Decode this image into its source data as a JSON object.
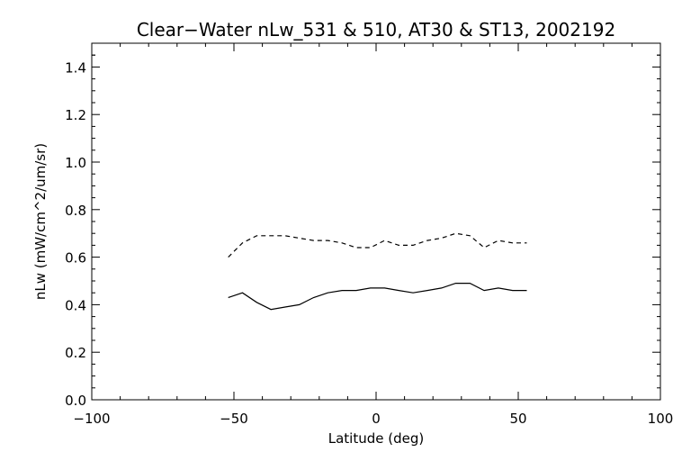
{
  "chart_data": {
    "type": "line",
    "title": "Clear−Water nLw_531 & 510, AT30 & ST13, 2002192",
    "xlabel": "Latitude (deg)",
    "ylabel": "nLw (mW/cm^2/um/sr)",
    "xlim": [
      -100,
      100
    ],
    "ylim": [
      0.0,
      1.5
    ],
    "x_ticks": [
      -100,
      -50,
      0,
      50,
      100
    ],
    "x_tick_labels": [
      "−100",
      "−50",
      "0",
      "50",
      "100"
    ],
    "y_ticks": [
      0.0,
      0.2,
      0.4,
      0.6,
      0.8,
      1.0,
      1.2,
      1.4
    ],
    "y_tick_labels": [
      "0.0",
      "0.2",
      "0.4",
      "0.6",
      "0.8",
      "1.0",
      "1.2",
      "1.4"
    ],
    "grid": false,
    "colors": {
      "line": "#000000",
      "axes": "#000000",
      "background": "#ffffff"
    },
    "series": [
      {
        "style": "dashed",
        "x": [
          -52,
          -47,
          -42,
          -37,
          -32,
          -27,
          -22,
          -17,
          -12,
          -7,
          -2,
          3,
          8,
          13,
          18,
          23,
          28,
          33,
          38,
          43,
          48,
          53
        ],
        "y": [
          0.6,
          0.66,
          0.69,
          0.69,
          0.69,
          0.68,
          0.67,
          0.67,
          0.66,
          0.64,
          0.64,
          0.67,
          0.65,
          0.65,
          0.67,
          0.68,
          0.7,
          0.69,
          0.64,
          0.67,
          0.66,
          0.66
        ]
      },
      {
        "style": "solid",
        "x": [
          -52,
          -47,
          -42,
          -37,
          -32,
          -27,
          -22,
          -17,
          -12,
          -7,
          -2,
          3,
          8,
          13,
          18,
          23,
          28,
          33,
          38,
          43,
          48,
          53
        ],
        "y": [
          0.43,
          0.45,
          0.41,
          0.38,
          0.39,
          0.4,
          0.43,
          0.45,
          0.46,
          0.46,
          0.47,
          0.47,
          0.46,
          0.45,
          0.46,
          0.47,
          0.49,
          0.49,
          0.46,
          0.47,
          0.46,
          0.46
        ]
      }
    ]
  }
}
